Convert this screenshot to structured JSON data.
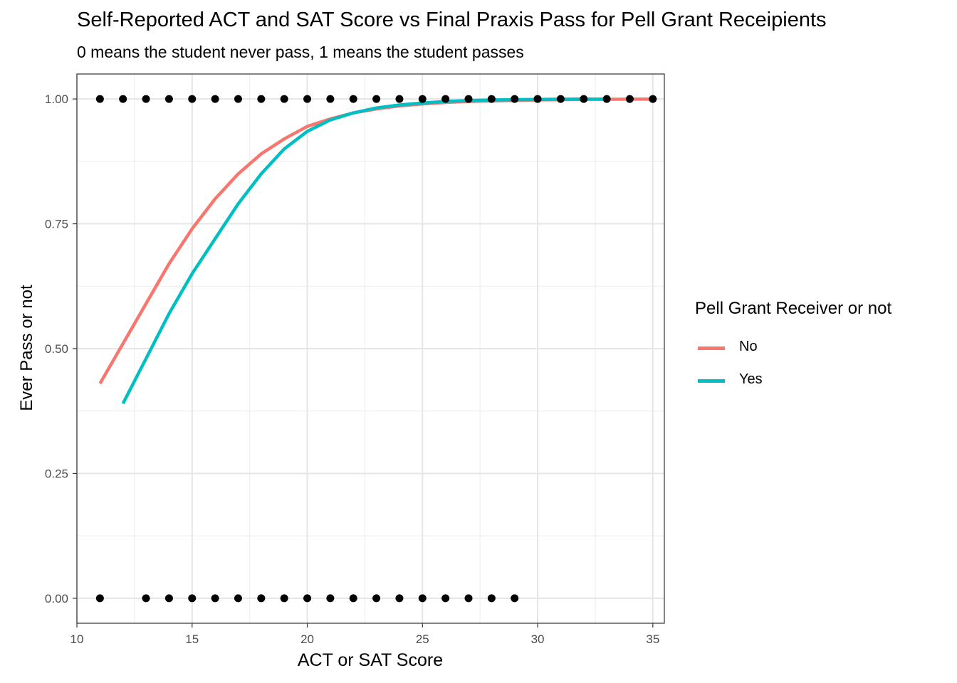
{
  "chart_data": {
    "type": "scatter",
    "title": "Self-Reported ACT and SAT Score vs Final Praxis Pass for Pell Grant Receipients",
    "subtitle": "0 means the student never pass, 1 means the student passes",
    "xlabel": "ACT or SAT Score",
    "ylabel": "Ever Pass or not",
    "xlim": [
      10,
      35.5
    ],
    "ylim": [
      -0.05,
      1.05
    ],
    "x_ticks": [
      10,
      15,
      20,
      25,
      30,
      35
    ],
    "x_tick_labels": [
      "10",
      "15",
      "20",
      "25",
      "30",
      "35"
    ],
    "y_ticks": [
      0,
      0.25,
      0.5,
      0.75,
      1.0
    ],
    "y_tick_labels": [
      "0.00",
      "0.25",
      "0.50",
      "0.75",
      "1.00"
    ],
    "grid": true,
    "legend": {
      "title": "Pell Grant Receiver or not",
      "position": "right",
      "entries": [
        {
          "label": "No",
          "color": "#F8766D"
        },
        {
          "label": "Yes",
          "color": "#00BFC4"
        }
      ]
    },
    "points": {
      "color": "#000000",
      "y1_x": [
        11,
        12,
        13,
        14,
        15,
        16,
        17,
        18,
        19,
        20,
        21,
        22,
        23,
        24,
        25,
        26,
        27,
        28,
        29,
        30,
        31,
        32,
        33,
        34,
        35
      ],
      "y0_x": [
        11,
        13,
        14,
        15,
        16,
        17,
        18,
        19,
        20,
        21,
        22,
        23,
        24,
        25,
        26,
        27,
        28,
        29
      ]
    },
    "series": [
      {
        "name": "No",
        "color": "#F8766D",
        "x": [
          11,
          12,
          13,
          14,
          15,
          16,
          17,
          18,
          19,
          20,
          21,
          22,
          23,
          24,
          25,
          26,
          27,
          28,
          29,
          30,
          31,
          32,
          33,
          34,
          35
        ],
        "y": [
          0.43,
          0.51,
          0.59,
          0.67,
          0.74,
          0.8,
          0.85,
          0.89,
          0.92,
          0.945,
          0.96,
          0.972,
          0.98,
          0.986,
          0.99,
          0.993,
          0.995,
          0.996,
          0.997,
          0.998,
          0.9985,
          0.999,
          0.9993,
          0.9995,
          0.9997
        ]
      },
      {
        "name": "Yes",
        "color": "#00BFC4",
        "x": [
          12,
          13,
          14,
          15,
          16,
          17,
          18,
          19,
          20,
          21,
          22,
          23,
          24,
          25,
          26,
          27,
          28,
          29,
          30,
          31,
          32,
          33
        ],
        "y": [
          0.39,
          0.48,
          0.57,
          0.65,
          0.72,
          0.79,
          0.85,
          0.9,
          0.935,
          0.958,
          0.972,
          0.982,
          0.988,
          0.992,
          0.995,
          0.997,
          0.998,
          0.9987,
          0.9992,
          0.9995,
          0.9997,
          0.9998
        ]
      }
    ]
  }
}
